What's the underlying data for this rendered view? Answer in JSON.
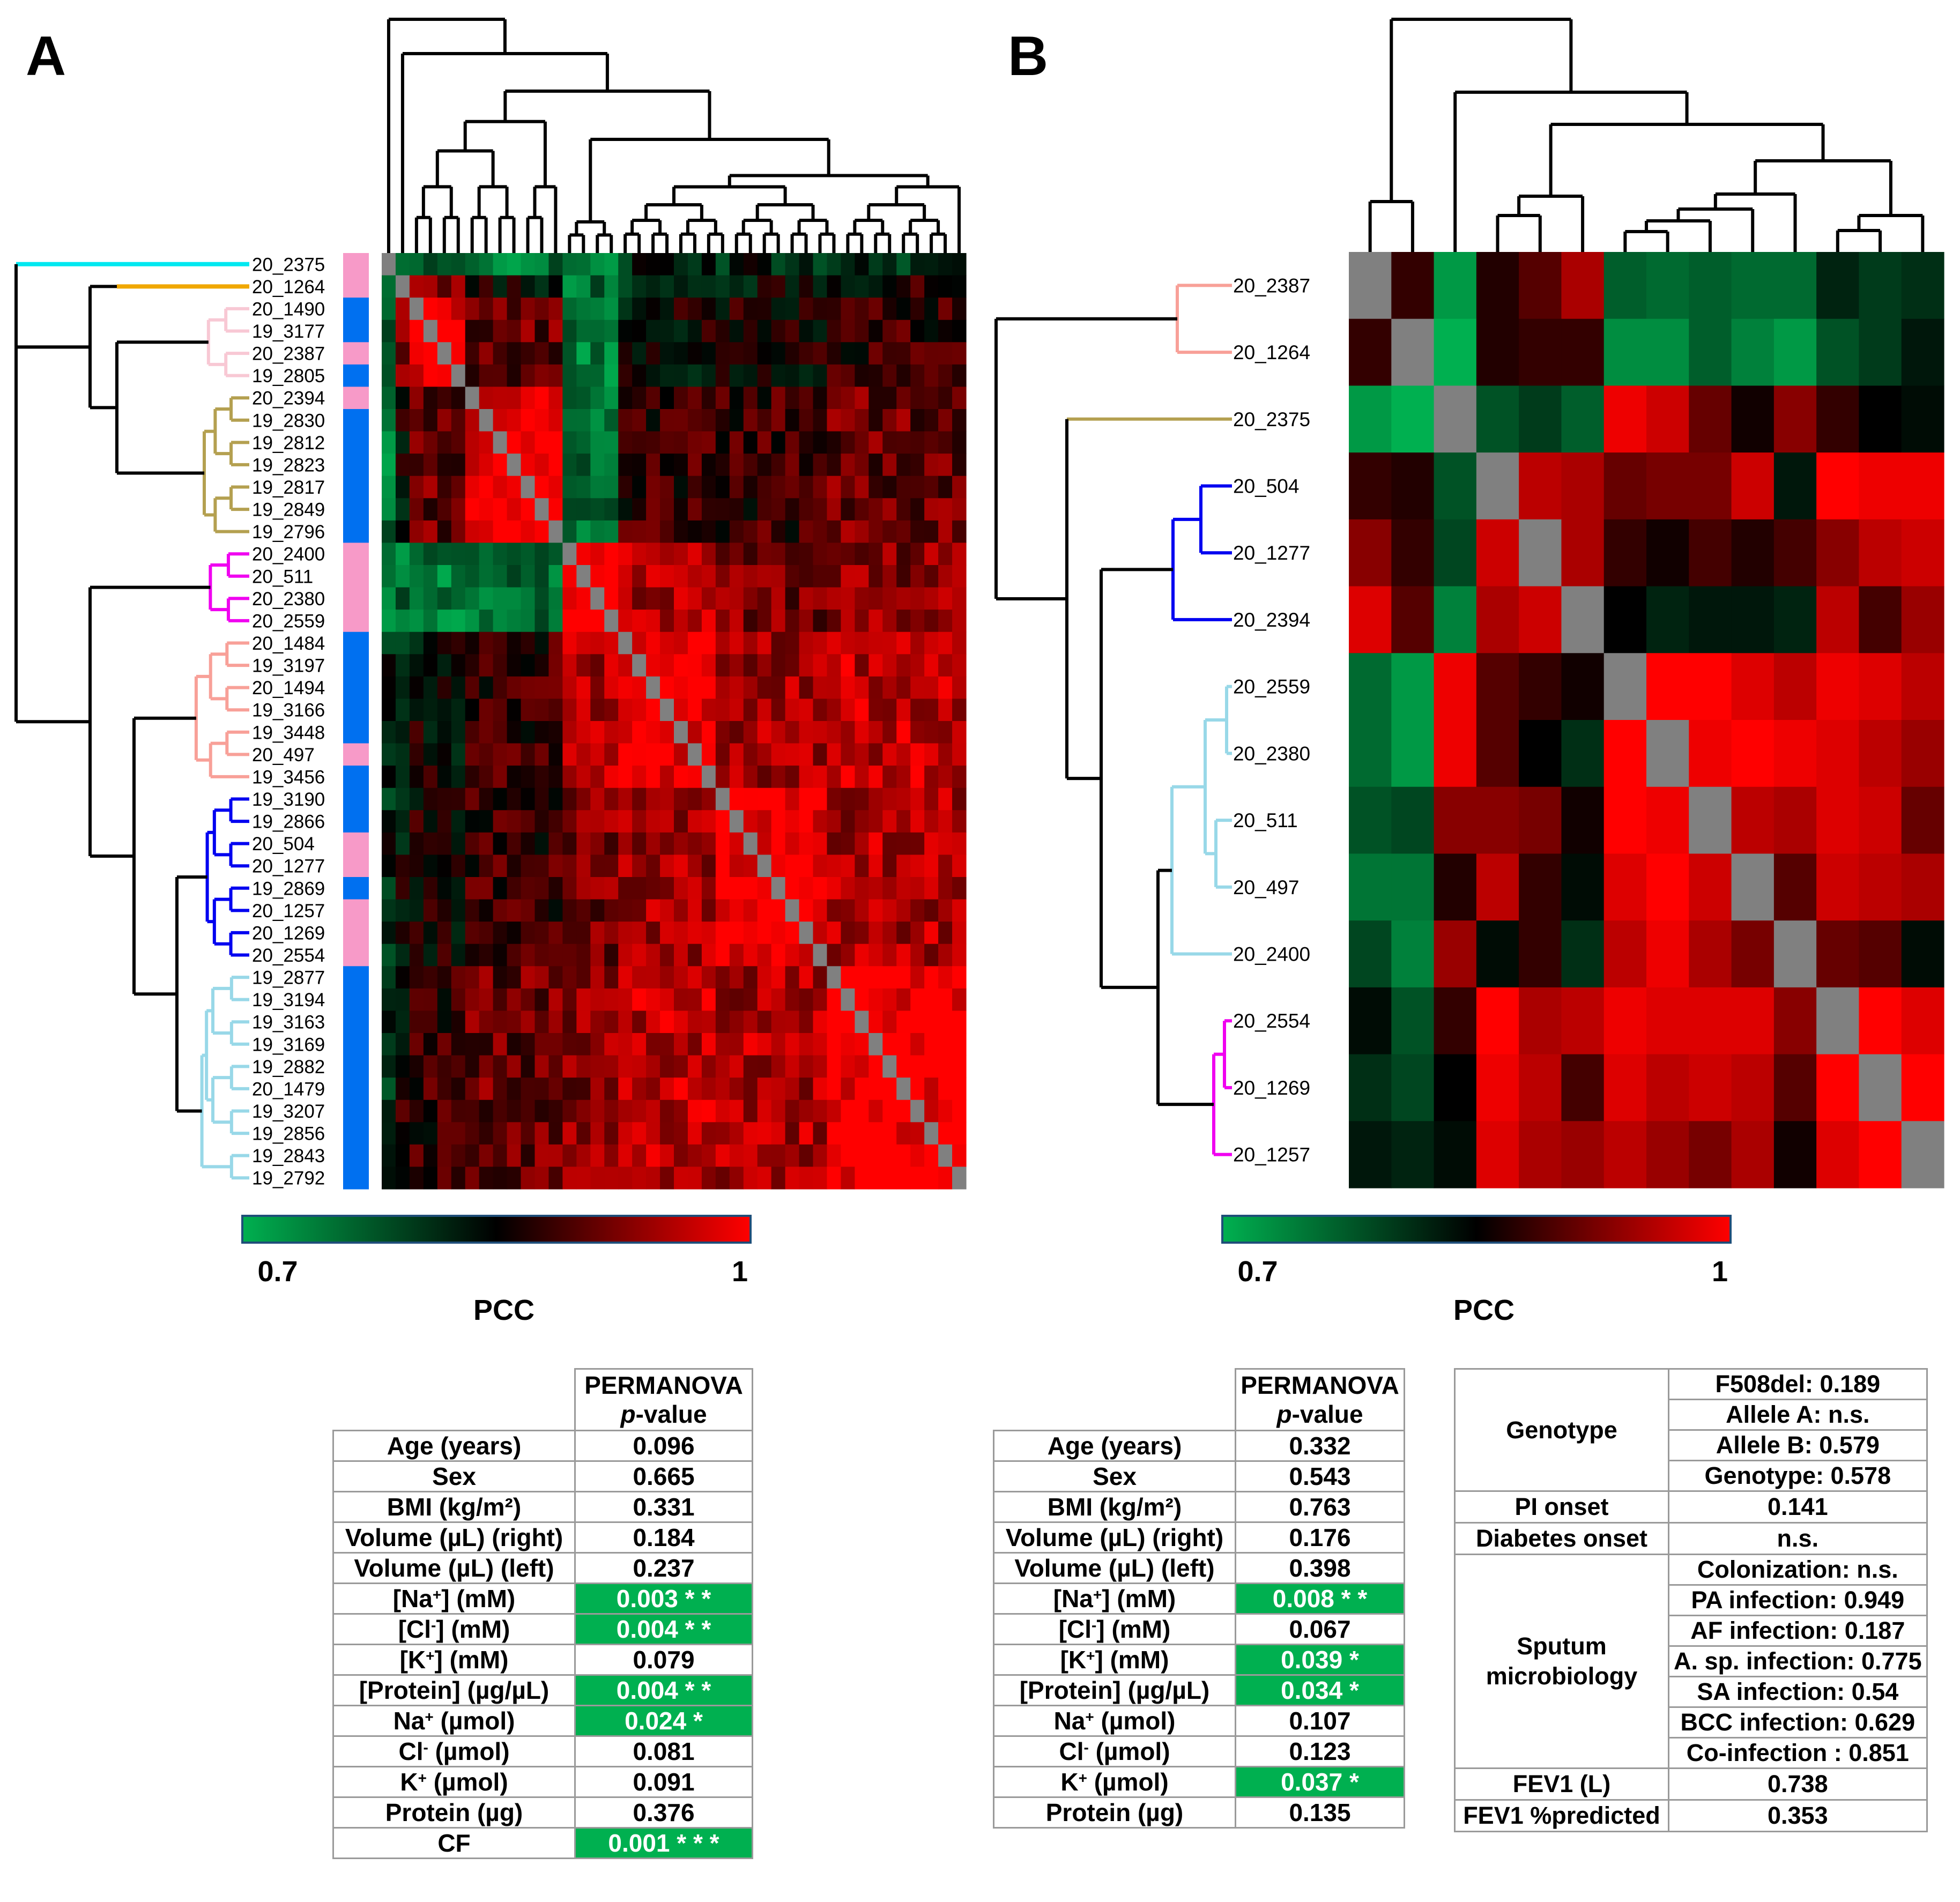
{
  "panels": [
    {
      "letter": "A"
    },
    {
      "letter": "B"
    }
  ],
  "colors": {
    "group_pink": "#f79ac8",
    "group_blue": "#0070f0",
    "clade_cyan": "#00e8f0",
    "clade_orange": "#f0a800",
    "clade_lightpink": "#f8c8d4",
    "clade_olive": "#b4a050",
    "clade_magenta": "#f000f0",
    "clade_salmon": "#f8a098",
    "clade_blue": "#0000f0",
    "clade_lightblue": "#98d8e8",
    "significant_cell": "#00b050",
    "diagonal": "#808080"
  },
  "chart_data": [
    {
      "type": "heatmap",
      "panel": "A",
      "title": "",
      "samples": [
        "20_2375",
        "20_1264",
        "20_1490",
        "19_3177",
        "20_2387",
        "19_2805",
        "20_2394",
        "19_2830",
        "19_2812",
        "19_2823",
        "19_2817",
        "19_2849",
        "19_2796",
        "20_2400",
        "20_511",
        "20_2380",
        "20_2559",
        "20_1484",
        "19_3197",
        "20_1494",
        "19_3166",
        "19_3448",
        "20_497",
        "19_3456",
        "19_3190",
        "19_2866",
        "20_504",
        "20_1277",
        "19_2869",
        "20_1257",
        "20_1269",
        "20_2554",
        "19_2877",
        "19_3194",
        "19_3163",
        "19_3169",
        "19_2882",
        "20_1479",
        "19_3207",
        "19_2856",
        "19_2843",
        "19_2792"
      ],
      "sample_group": [
        "pink",
        "pink",
        "blue",
        "blue",
        "pink",
        "blue",
        "pink",
        "blue",
        "blue",
        "blue",
        "blue",
        "blue",
        "blue",
        "pink",
        "pink",
        "pink",
        "pink",
        "blue",
        "blue",
        "blue",
        "blue",
        "blue",
        "pink",
        "blue",
        "blue",
        "blue",
        "pink",
        "pink",
        "blue",
        "pink",
        "pink",
        "pink",
        "blue",
        "blue",
        "blue",
        "blue",
        "blue",
        "blue",
        "blue",
        "blue",
        "blue",
        "blue"
      ],
      "clusters": [
        {
          "name": "cyan",
          "samples": [
            "20_2375"
          ]
        },
        {
          "name": "orange",
          "samples": [
            "20_1264"
          ]
        },
        {
          "name": "lightpink",
          "samples": [
            "20_1490",
            "19_3177",
            "20_2387",
            "19_2805"
          ]
        },
        {
          "name": "olive",
          "samples": [
            "20_2394",
            "19_2830",
            "19_2812",
            "19_2823",
            "19_2817",
            "19_2849",
            "19_2796"
          ]
        },
        {
          "name": "magenta",
          "samples": [
            "20_2400",
            "20_511",
            "20_2380",
            "20_2559"
          ]
        },
        {
          "name": "salmon",
          "samples": [
            "20_1484",
            "19_3197",
            "20_1494",
            "19_3166",
            "19_3448",
            "20_497",
            "19_3456"
          ]
        },
        {
          "name": "blue",
          "samples": [
            "19_3190",
            "19_2866",
            "20_504",
            "20_1277",
            "19_2869",
            "20_1257",
            "20_1269",
            "20_2554"
          ]
        },
        {
          "name": "lightblue",
          "samples": [
            "19_2877",
            "19_3194",
            "19_3163",
            "19_3169",
            "19_2882",
            "20_1479",
            "19_3207",
            "19_2856",
            "19_2843",
            "19_2792"
          ]
        }
      ],
      "block_means": [
        [
          1.0,
          0.75,
          0.76,
          0.75,
          0.74,
          0.82,
          0.82,
          0.82
        ],
        [
          0.75,
          1.0,
          0.92,
          0.85,
          0.76,
          0.8,
          0.84,
          0.86
        ],
        [
          0.76,
          0.92,
          1.0,
          0.91,
          0.75,
          0.85,
          0.86,
          0.88
        ],
        [
          0.75,
          0.85,
          0.91,
          1.0,
          0.76,
          0.88,
          0.88,
          0.91
        ],
        [
          0.74,
          0.76,
          0.75,
          0.76,
          1.0,
          0.95,
          0.92,
          0.93
        ],
        [
          0.82,
          0.8,
          0.85,
          0.88,
          0.95,
          1.0,
          0.94,
          0.96
        ],
        [
          0.82,
          0.84,
          0.86,
          0.88,
          0.92,
          0.94,
          1.0,
          0.95
        ],
        [
          0.82,
          0.86,
          0.88,
          0.91,
          0.93,
          0.96,
          0.95,
          1.0
        ]
      ],
      "colorbar": {
        "min": 0.7,
        "max": 1,
        "min_label": "0.7",
        "max_label": "1",
        "label": "PCC",
        "colors": [
          "#00b050",
          "#000000",
          "#ff0000"
        ]
      }
    },
    {
      "type": "heatmap",
      "panel": "B",
      "title": "",
      "samples": [
        "20_2387",
        "20_1264",
        "20_2375",
        "20_504",
        "20_1277",
        "20_2394",
        "20_2559",
        "20_2380",
        "20_511",
        "20_497",
        "20_2400",
        "20_2554",
        "20_1269",
        "20_1257"
      ],
      "clusters": [
        {
          "name": "salmon",
          "samples": [
            "20_2387",
            "20_1264"
          ]
        },
        {
          "name": "olive",
          "samples": [
            "20_2375"
          ]
        },
        {
          "name": "blue",
          "samples": [
            "20_504",
            "20_1277",
            "20_2394"
          ]
        },
        {
          "name": "lightblue",
          "samples": [
            "20_2559",
            "20_2380",
            "20_511",
            "20_497",
            "20_2400"
          ]
        },
        {
          "name": "magenta",
          "samples": [
            "20_2554",
            "20_1269",
            "20_1257"
          ]
        }
      ],
      "matrix": [
        [
          null,
          0.88,
          0.72,
          0.87,
          0.9,
          0.95,
          0.77,
          0.76,
          0.77,
          0.76,
          0.76,
          0.82,
          0.8,
          0.81
        ],
        [
          0.88,
          null,
          0.68,
          0.87,
          0.88,
          0.88,
          0.73,
          0.73,
          0.77,
          0.74,
          0.72,
          0.78,
          0.8,
          0.83
        ],
        [
          0.72,
          0.68,
          null,
          0.78,
          0.8,
          0.77,
          0.99,
          0.97,
          0.91,
          0.86,
          0.93,
          0.88,
          0.85,
          0.84
        ],
        [
          0.88,
          0.87,
          0.78,
          null,
          0.96,
          0.95,
          0.91,
          0.92,
          0.92,
          0.97,
          0.83,
          1.0,
          0.99,
          0.99
        ],
        [
          0.93,
          0.88,
          0.79,
          0.97,
          null,
          0.95,
          0.88,
          0.86,
          0.89,
          0.87,
          0.89,
          0.93,
          0.96,
          0.97
        ],
        [
          0.98,
          0.9,
          0.74,
          0.95,
          0.97,
          null,
          0.85,
          0.82,
          0.83,
          0.83,
          0.82,
          0.96,
          0.89,
          0.94
        ],
        [
          0.76,
          0.72,
          0.99,
          0.9,
          0.88,
          0.86,
          null,
          1.0,
          1.0,
          0.98,
          0.96,
          0.99,
          0.98,
          0.96
        ],
        [
          0.76,
          0.72,
          0.99,
          0.9,
          0.85,
          0.81,
          1.0,
          null,
          0.99,
          1.0,
          0.99,
          0.98,
          0.96,
          0.94
        ],
        [
          0.78,
          0.79,
          0.93,
          0.93,
          0.92,
          0.86,
          1.0,
          0.99,
          null,
          0.96,
          0.95,
          0.98,
          0.97,
          0.91
        ],
        [
          0.75,
          0.75,
          0.87,
          0.96,
          0.88,
          0.84,
          0.98,
          1.0,
          0.97,
          null,
          0.9,
          0.97,
          0.96,
          0.95
        ],
        [
          0.79,
          0.74,
          0.94,
          0.84,
          0.88,
          0.81,
          0.96,
          0.99,
          0.95,
          0.92,
          null,
          0.91,
          0.9,
          0.84
        ],
        [
          0.84,
          0.78,
          0.88,
          1.0,
          0.95,
          0.96,
          0.99,
          0.98,
          0.98,
          0.98,
          0.93,
          null,
          1.0,
          0.98
        ],
        [
          0.81,
          0.79,
          0.85,
          0.99,
          0.96,
          0.89,
          0.98,
          0.96,
          0.97,
          0.96,
          0.9,
          1.0,
          null,
          1.0
        ],
        [
          0.83,
          0.82,
          0.84,
          0.98,
          0.95,
          0.94,
          0.96,
          0.94,
          0.92,
          0.95,
          0.86,
          0.98,
          1.0,
          null
        ]
      ],
      "colorbar": {
        "min": 0.7,
        "max": 1,
        "min_label": "0.7",
        "max_label": "1",
        "label": "PCC",
        "colors": [
          "#00b050",
          "#000000",
          "#ff0000"
        ]
      }
    }
  ],
  "table_a": {
    "header_line1": "PERMANOVA",
    "header_p": "p",
    "header_value": "-value",
    "rows": [
      {
        "pre": "Age (years)",
        "sup": "",
        "post": "",
        "value": "0.096",
        "sig": false
      },
      {
        "pre": "Sex",
        "sup": "",
        "post": "",
        "value": "0.665",
        "sig": false
      },
      {
        "pre": "BMI (kg/m²)",
        "sup": "",
        "post": "",
        "value": "0.331",
        "sig": false
      },
      {
        "pre": "Volume (µL) (right)",
        "sup": "",
        "post": "",
        "value": "0.184",
        "sig": false
      },
      {
        "pre": "Volume (µL) (left)",
        "sup": "",
        "post": "",
        "value": "0.237",
        "sig": false
      },
      {
        "pre": "[Na",
        "sup": "+",
        "post": "] (mM)",
        "value": "0.003 * *",
        "sig": true
      },
      {
        "pre": "[Cl",
        "sup": "-",
        "post": "] (mM)",
        "value": "0.004 * *",
        "sig": true
      },
      {
        "pre": "[K",
        "sup": "+",
        "post": "] (mM)",
        "value": "0.079",
        "sig": false
      },
      {
        "pre": "[Protein] (µg/µL)",
        "sup": "",
        "post": "",
        "value": "0.004 * *",
        "sig": true
      },
      {
        "pre": "Na",
        "sup": "+",
        "post": " (µmol)",
        "value": "0.024 *",
        "sig": true
      },
      {
        "pre": "Cl",
        "sup": "-",
        "post": " (µmol)",
        "value": "0.081",
        "sig": false
      },
      {
        "pre": "K",
        "sup": "+",
        "post": " (µmol)",
        "value": "0.091",
        "sig": false
      },
      {
        "pre": "Protein (µg)",
        "sup": "",
        "post": "",
        "value": "0.376",
        "sig": false
      },
      {
        "pre": "CF",
        "sup": "",
        "post": "",
        "value": "0.001 * * *",
        "sig": true
      }
    ]
  },
  "table_b": {
    "header_line1": "PERMANOVA",
    "header_p": "p",
    "header_value": "-value",
    "rows": [
      {
        "pre": "Age (years)",
        "sup": "",
        "post": "",
        "value": "0.332",
        "sig": false
      },
      {
        "pre": "Sex",
        "sup": "",
        "post": "",
        "value": "0.543",
        "sig": false
      },
      {
        "pre": "BMI (kg/m²)",
        "sup": "",
        "post": "",
        "value": "0.763",
        "sig": false
      },
      {
        "pre": "Volume (µL) (right)",
        "sup": "",
        "post": "",
        "value": "0.176",
        "sig": false
      },
      {
        "pre": "Volume (µL) (left)",
        "sup": "",
        "post": "",
        "value": "0.398",
        "sig": false
      },
      {
        "pre": "[Na",
        "sup": "+",
        "post": "] (mM)",
        "value": "0.008 * *",
        "sig": true
      },
      {
        "pre": "[Cl",
        "sup": "-",
        "post": "] (mM)",
        "value": "0.067",
        "sig": false
      },
      {
        "pre": "[K",
        "sup": "+",
        "post": "] (mM)",
        "value": "0.039 *",
        "sig": true
      },
      {
        "pre": "[Protein] (µg/µL)",
        "sup": "",
        "post": "",
        "value": "0.034 *",
        "sig": true
      },
      {
        "pre": "Na",
        "sup": "+",
        "post": " (µmol)",
        "value": "0.107",
        "sig": false
      },
      {
        "pre": "Cl",
        "sup": "-",
        "post": " (µmol)",
        "value": "0.123",
        "sig": false
      },
      {
        "pre": "K",
        "sup": "+",
        "post": " (µmol)",
        "value": "0.037 *",
        "sig": true
      },
      {
        "pre": "Protein (µg)",
        "sup": "",
        "post": "",
        "value": "0.135",
        "sig": false
      }
    ]
  },
  "table_c": {
    "genotype": {
      "label": "Genotype",
      "rows": [
        "F508del: 0.189",
        "Allele A: n.s.",
        "Allele B: 0.579",
        "Genotype: 0.578"
      ]
    },
    "pi_onset": {
      "label": "PI onset",
      "value": "0.141"
    },
    "diabetes_onset": {
      "label": "Diabetes onset",
      "value": "n.s."
    },
    "sputum": {
      "label_line1": "Sputum",
      "label_line2": "microbiology",
      "rows": [
        "Colonization: n.s.",
        "PA infection: 0.949",
        "AF infection: 0.187",
        "A. sp. infection: 0.775",
        "SA infection: 0.54",
        "BCC infection: 0.629",
        "Co-infection : 0.851"
      ]
    },
    "fev1": {
      "label": "FEV1 (L)",
      "value": "0.738"
    },
    "fev1_pct": {
      "label": "FEV1 %predicted",
      "value": "0.353"
    }
  }
}
